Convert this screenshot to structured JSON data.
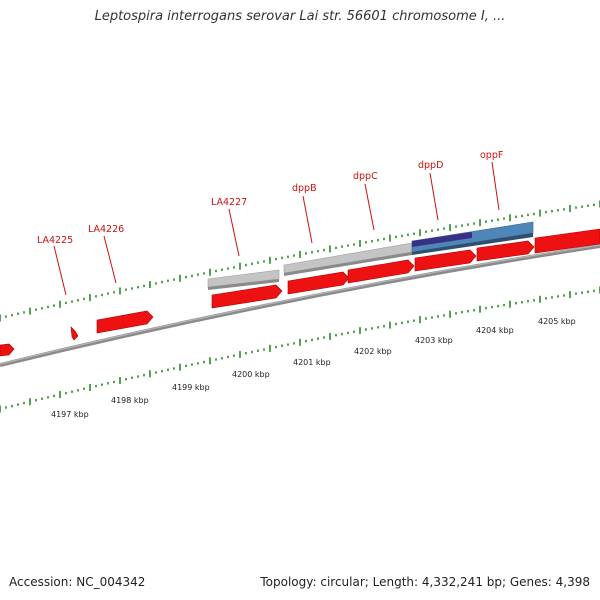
{
  "title": "Leptospira interrogans serovar Lai str. 56601 chromosome I, ...",
  "footer": {
    "accession": "Accession: NC_004342",
    "topology": "Topology: circular; Length: 4,332,241 bp; Genes: 4,398"
  },
  "scale_labels": [
    "4197 kbp",
    "4198 kbp",
    "4199 kbp",
    "4200 kbp",
    "4201 kbp",
    "4202 kbp",
    "4203 kbp",
    "4204 kbp",
    "4205 kbp"
  ],
  "gene_labels": [
    "LA4225",
    "LA4226",
    "LA4227",
    "dppB",
    "dppC",
    "dppD",
    "oppF"
  ],
  "colors": {
    "gene": "#ee1111",
    "gene_shade": "#aa0000",
    "hit_gray": "#c8c8c8",
    "hit_blue": "#4f86b8",
    "hit_dark": "#3a2f86",
    "backbone": "#7a7a7a",
    "tick": "#2a8a2a",
    "label": "#cc1111"
  }
}
